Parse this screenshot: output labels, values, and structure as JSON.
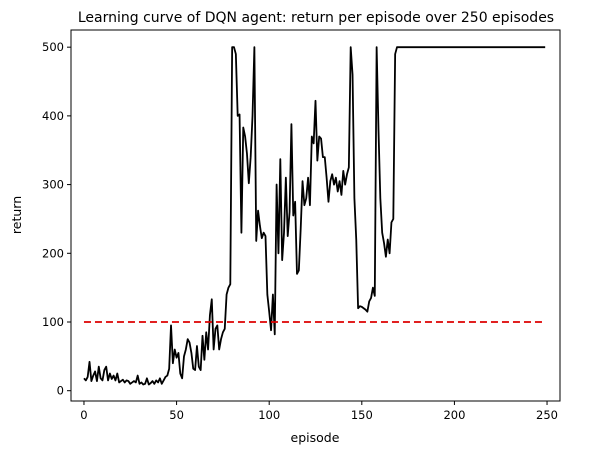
{
  "chart_data": {
    "type": "line",
    "title": "Learning curve of DQN agent: return per episode over 250 episodes",
    "xlabel": "episode",
    "ylabel": "return",
    "xlim": [
      -7,
      257
    ],
    "ylim": [
      -15,
      525
    ],
    "xticks": [
      0,
      50,
      100,
      150,
      200,
      250
    ],
    "yticks": [
      0,
      100,
      200,
      300,
      400,
      500
    ],
    "grid": false,
    "series": [
      {
        "style": "solid",
        "color": "#000000",
        "points": [
          [
            0,
            18
          ],
          [
            1,
            15
          ],
          [
            2,
            20
          ],
          [
            3,
            42
          ],
          [
            4,
            14
          ],
          [
            5,
            22
          ],
          [
            6,
            28
          ],
          [
            7,
            14
          ],
          [
            8,
            35
          ],
          [
            9,
            18
          ],
          [
            10,
            15
          ],
          [
            11,
            30
          ],
          [
            12,
            35
          ],
          [
            13,
            15
          ],
          [
            14,
            25
          ],
          [
            15,
            17
          ],
          [
            16,
            22
          ],
          [
            17,
            15
          ],
          [
            18,
            25
          ],
          [
            19,
            12
          ],
          [
            20,
            14
          ],
          [
            21,
            16
          ],
          [
            22,
            12
          ],
          [
            23,
            15
          ],
          [
            24,
            14
          ],
          [
            25,
            10
          ],
          [
            26,
            12
          ],
          [
            27,
            14
          ],
          [
            28,
            12
          ],
          [
            29,
            22
          ],
          [
            30,
            10
          ],
          [
            31,
            12
          ],
          [
            32,
            9
          ],
          [
            33,
            10
          ],
          [
            34,
            18
          ],
          [
            35,
            9
          ],
          [
            36,
            11
          ],
          [
            37,
            14
          ],
          [
            38,
            10
          ],
          [
            39,
            15
          ],
          [
            40,
            12
          ],
          [
            41,
            18
          ],
          [
            42,
            10
          ],
          [
            43,
            15
          ],
          [
            44,
            20
          ],
          [
            45,
            22
          ],
          [
            46,
            32
          ],
          [
            47,
            95
          ],
          [
            48,
            40
          ],
          [
            49,
            60
          ],
          [
            50,
            48
          ],
          [
            51,
            55
          ],
          [
            52,
            25
          ],
          [
            53,
            18
          ],
          [
            54,
            50
          ],
          [
            55,
            60
          ],
          [
            56,
            75
          ],
          [
            57,
            70
          ],
          [
            58,
            55
          ],
          [
            59,
            32
          ],
          [
            60,
            30
          ],
          [
            61,
            65
          ],
          [
            62,
            35
          ],
          [
            63,
            30
          ],
          [
            64,
            80
          ],
          [
            65,
            45
          ],
          [
            66,
            85
          ],
          [
            67,
            60
          ],
          [
            68,
            110
          ],
          [
            69,
            133
          ],
          [
            70,
            60
          ],
          [
            71,
            90
          ],
          [
            72,
            95
          ],
          [
            73,
            60
          ],
          [
            74,
            75
          ],
          [
            75,
            85
          ],
          [
            76,
            90
          ],
          [
            77,
            140
          ],
          [
            78,
            150
          ],
          [
            79,
            155
          ],
          [
            80,
            500
          ],
          [
            81,
            500
          ],
          [
            82,
            490
          ],
          [
            83,
            400
          ],
          [
            84,
            402
          ],
          [
            85,
            230
          ],
          [
            86,
            383
          ],
          [
            87,
            370
          ],
          [
            88,
            345
          ],
          [
            89,
            302
          ],
          [
            90,
            340
          ],
          [
            91,
            400
          ],
          [
            92,
            500
          ],
          [
            93,
            218
          ],
          [
            94,
            262
          ],
          [
            95,
            240
          ],
          [
            96,
            222
          ],
          [
            97,
            230
          ],
          [
            98,
            225
          ],
          [
            99,
            140
          ],
          [
            100,
            115
          ],
          [
            101,
            88
          ],
          [
            102,
            140
          ],
          [
            103,
            82
          ],
          [
            104,
            300
          ],
          [
            105,
            200
          ],
          [
            106,
            337
          ],
          [
            107,
            190
          ],
          [
            108,
            230
          ],
          [
            109,
            310
          ],
          [
            110,
            225
          ],
          [
            111,
            260
          ],
          [
            112,
            388
          ],
          [
            113,
            255
          ],
          [
            114,
            275
          ],
          [
            115,
            170
          ],
          [
            116,
            175
          ],
          [
            117,
            235
          ],
          [
            118,
            305
          ],
          [
            119,
            270
          ],
          [
            120,
            280
          ],
          [
            121,
            310
          ],
          [
            122,
            270
          ],
          [
            123,
            370
          ],
          [
            124,
            360
          ],
          [
            125,
            422
          ],
          [
            126,
            335
          ],
          [
            127,
            370
          ],
          [
            128,
            367
          ],
          [
            129,
            340
          ],
          [
            130,
            340
          ],
          [
            131,
            310
          ],
          [
            132,
            275
          ],
          [
            133,
            305
          ],
          [
            134,
            315
          ],
          [
            135,
            300
          ],
          [
            136,
            310
          ],
          [
            137,
            290
          ],
          [
            138,
            305
          ],
          [
            139,
            285
          ],
          [
            140,
            320
          ],
          [
            141,
            300
          ],
          [
            142,
            315
          ],
          [
            143,
            325
          ],
          [
            144,
            500
          ],
          [
            145,
            460
          ],
          [
            146,
            280
          ],
          [
            147,
            220
          ],
          [
            148,
            120
          ],
          [
            149,
            123
          ],
          [
            150,
            122
          ],
          [
            151,
            120
          ],
          [
            152,
            118
          ],
          [
            153,
            115
          ],
          [
            154,
            130
          ],
          [
            155,
            135
          ],
          [
            156,
            150
          ],
          [
            157,
            138
          ],
          [
            158,
            500
          ],
          [
            159,
            380
          ],
          [
            160,
            280
          ],
          [
            161,
            230
          ],
          [
            162,
            215
          ],
          [
            163,
            195
          ],
          [
            164,
            220
          ],
          [
            165,
            200
          ],
          [
            166,
            245
          ],
          [
            167,
            250
          ],
          [
            168,
            490
          ],
          [
            169,
            500
          ],
          [
            170,
            500
          ],
          [
            200,
            500
          ],
          [
            249,
            500
          ]
        ]
      },
      {
        "style": "dashed",
        "color": "#dd0000",
        "points": [
          [
            0,
            100
          ],
          [
            249,
            100
          ]
        ]
      }
    ]
  }
}
